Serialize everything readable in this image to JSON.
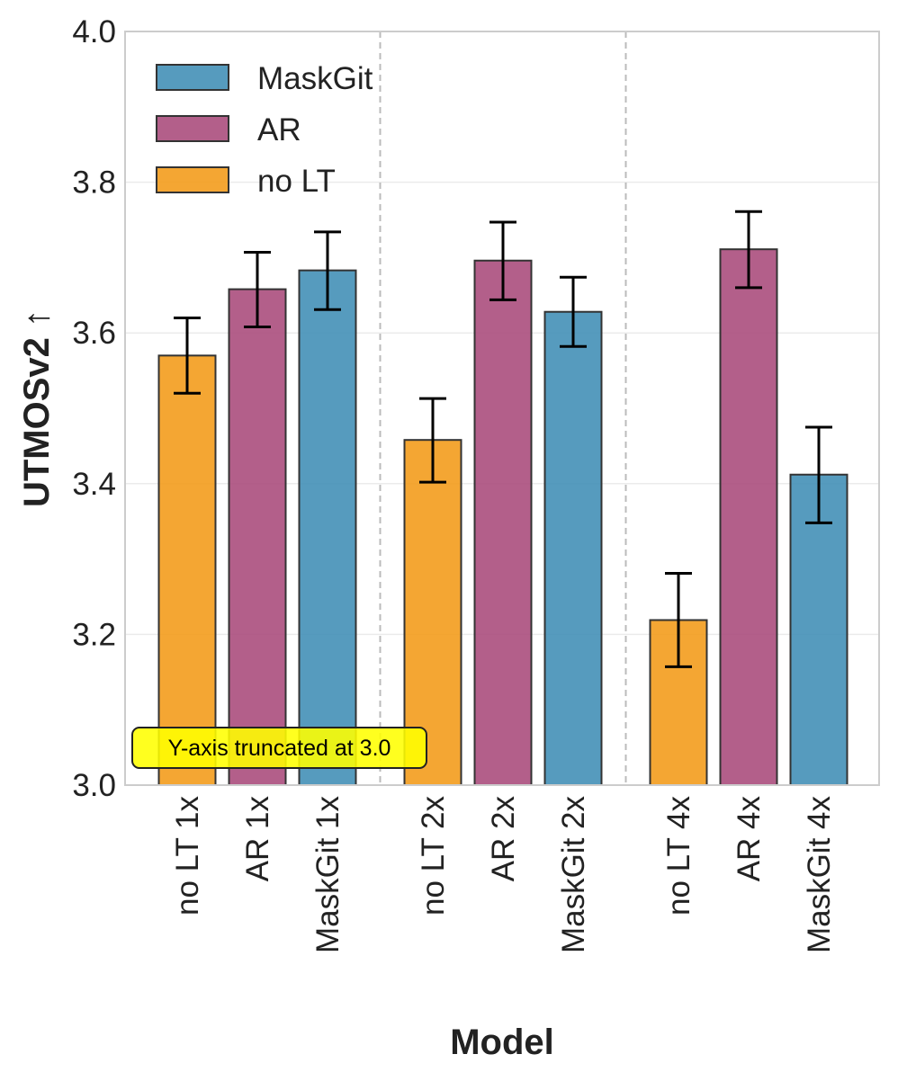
{
  "chart_data": {
    "type": "bar",
    "xlabel": "Model",
    "ylabel": "UTMOSv2 ↑",
    "ylim": [
      3.0,
      4.0
    ],
    "yticks": [
      "3.0",
      "3.2",
      "3.4",
      "3.6",
      "3.8",
      "4.0"
    ],
    "grid": true,
    "legend_position": "top-left",
    "categories": [
      "no LT 1x",
      "AR 1x",
      "MaskGit 1x",
      "no LT 2x",
      "AR 2x",
      "MaskGit 2x",
      "no LT 4x",
      "AR 4x",
      "MaskGit 4x"
    ],
    "groups": [
      "1x",
      "2x",
      "4x"
    ],
    "series": [
      {
        "name": "MaskGit",
        "color": "#3f8db5"
      },
      {
        "name": "AR",
        "color": "#a8497a"
      },
      {
        "name": "no LT",
        "color": "#f29a17"
      }
    ],
    "bars": [
      {
        "label": "no LT 1x",
        "series": "no LT",
        "value": 3.57,
        "err_low": 3.52,
        "err_high": 3.62
      },
      {
        "label": "AR 1x",
        "series": "AR",
        "value": 3.658,
        "err_low": 3.608,
        "err_high": 3.707
      },
      {
        "label": "MaskGit 1x",
        "series": "MaskGit",
        "value": 3.683,
        "err_low": 3.631,
        "err_high": 3.734
      },
      {
        "label": "no LT 2x",
        "series": "no LT",
        "value": 3.458,
        "err_low": 3.402,
        "err_high": 3.513
      },
      {
        "label": "AR 2x",
        "series": "AR",
        "value": 3.696,
        "err_low": 3.644,
        "err_high": 3.747
      },
      {
        "label": "MaskGit 2x",
        "series": "MaskGit",
        "value": 3.628,
        "err_low": 3.582,
        "err_high": 3.674
      },
      {
        "label": "no LT 4x",
        "series": "no LT",
        "value": 3.219,
        "err_low": 3.157,
        "err_high": 3.281
      },
      {
        "label": "AR 4x",
        "series": "AR",
        "value": 3.711,
        "err_low": 3.66,
        "err_high": 3.761
      },
      {
        "label": "MaskGit 4x",
        "series": "MaskGit",
        "value": 3.412,
        "err_low": 3.348,
        "err_high": 3.475
      }
    ],
    "annotation": "Y-axis truncated at 3.0"
  }
}
